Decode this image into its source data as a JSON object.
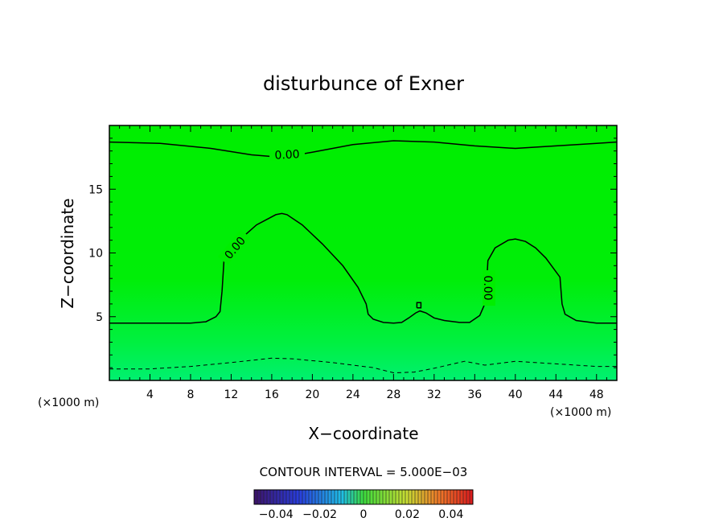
{
  "chart_data": {
    "type": "contour",
    "title": "disturbunce of Exner",
    "xlabel": "X−coordinate",
    "ylabel": "Z−coordinate",
    "x_unit": "(×1000 m)",
    "y_unit": "(×1000 m)",
    "xlim": [
      0,
      50
    ],
    "ylim": [
      0,
      20
    ],
    "x_ticks": [
      4,
      8,
      12,
      16,
      20,
      24,
      28,
      32,
      36,
      40,
      44,
      48
    ],
    "y_ticks": [
      5,
      10,
      15
    ],
    "contour_interval_text": "CONTOUR INTERVAL = 5.000E−03",
    "contours": [
      {
        "level": "0.00",
        "label": "0.00",
        "style": "solid",
        "points": [
          [
            0,
            18.7
          ],
          [
            5,
            18.6
          ],
          [
            10,
            18.2
          ],
          [
            14,
            17.7
          ],
          [
            17,
            17.5
          ],
          [
            20,
            17.9
          ],
          [
            24,
            18.5
          ],
          [
            28,
            18.8
          ],
          [
            32,
            18.7
          ],
          [
            36,
            18.4
          ],
          [
            40,
            18.2
          ],
          [
            44,
            18.4
          ],
          [
            48,
            18.6
          ],
          [
            50,
            18.7
          ]
        ]
      },
      {
        "level": "0.00",
        "label": "0.00",
        "style": "solid",
        "points": [
          [
            0,
            4.5
          ],
          [
            4,
            4.5
          ],
          [
            8,
            4.5
          ],
          [
            9.5,
            4.6
          ],
          [
            10.5,
            5.0
          ],
          [
            10.9,
            5.4
          ],
          [
            11.1,
            7.0
          ],
          [
            11.3,
            9.5
          ],
          [
            12.5,
            10.8
          ],
          [
            14.5,
            12.2
          ],
          [
            16.4,
            13.0
          ],
          [
            17,
            13.1
          ],
          [
            17.5,
            13.0
          ],
          [
            19,
            12.2
          ],
          [
            21,
            10.7
          ],
          [
            23,
            9.0
          ],
          [
            24.5,
            7.3
          ],
          [
            25.3,
            6.0
          ],
          [
            25.5,
            5.2
          ],
          [
            26,
            4.8
          ],
          [
            27,
            4.55
          ],
          [
            28,
            4.5
          ],
          [
            28.8,
            4.55
          ],
          [
            29.5,
            4.9
          ],
          [
            30.2,
            5.3
          ],
          [
            30.6,
            5.45
          ],
          [
            31.2,
            5.3
          ],
          [
            32,
            4.9
          ],
          [
            33,
            4.7
          ],
          [
            34.5,
            4.55
          ],
          [
            35.5,
            4.55
          ],
          [
            36.5,
            5.1
          ],
          [
            37.1,
            6.2
          ],
          [
            37.2,
            8.0
          ],
          [
            37.3,
            9.4
          ],
          [
            38,
            10.4
          ],
          [
            39.3,
            11.0
          ],
          [
            40,
            11.1
          ],
          [
            41,
            10.9
          ],
          [
            42,
            10.4
          ],
          [
            43,
            9.6
          ],
          [
            44.4,
            8.1
          ],
          [
            44.6,
            6.0
          ],
          [
            44.9,
            5.2
          ],
          [
            46,
            4.7
          ],
          [
            48,
            4.5
          ],
          [
            50,
            4.5
          ]
        ]
      },
      {
        "level": "0.00",
        "label": "",
        "style": "solid",
        "points": [
          [
            30.3,
            5.7
          ],
          [
            30.7,
            5.7
          ],
          [
            30.7,
            6.1
          ],
          [
            30.3,
            6.1
          ],
          [
            30.3,
            5.7
          ]
        ]
      },
      {
        "level": "-0.005",
        "label": "",
        "style": "dashed",
        "points": [
          [
            0,
            0.9
          ],
          [
            4,
            0.9
          ],
          [
            8,
            1.1
          ],
          [
            12,
            1.4
          ],
          [
            16,
            1.75
          ],
          [
            18,
            1.7
          ],
          [
            22,
            1.4
          ],
          [
            26,
            1.0
          ],
          [
            28,
            0.6
          ],
          [
            30,
            0.65
          ],
          [
            32,
            0.95
          ],
          [
            35,
            1.5
          ],
          [
            37,
            1.2
          ],
          [
            40,
            1.5
          ],
          [
            44,
            1.3
          ],
          [
            48,
            1.1
          ],
          [
            50,
            1.1
          ]
        ]
      }
    ],
    "colorbar": {
      "range": [
        -0.05,
        0.05
      ],
      "tick_labels": [
        "−0.04",
        "−0.02",
        "0",
        "0.02",
        "0.04"
      ],
      "tick_values": [
        -0.04,
        -0.02,
        0,
        0.02,
        0.04
      ]
    },
    "colors": {
      "field_background": "#00ee00",
      "field_lower": "#00f060",
      "contour_line": "#000000"
    }
  }
}
